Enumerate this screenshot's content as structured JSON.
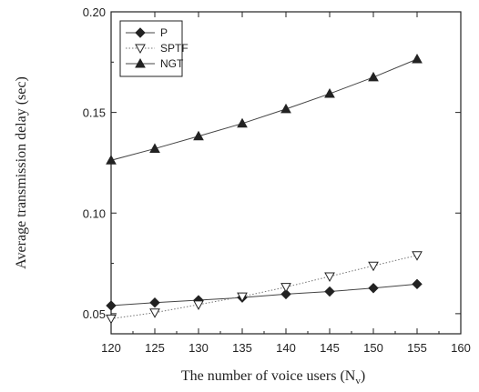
{
  "chart_data": {
    "type": "line",
    "xlabel": "The number of voice users (N",
    "xlabel_sub": "v",
    "xlabel_end": ")",
    "ylabel": "Average transmission delay (sec)",
    "xlim": [
      120,
      160
    ],
    "ylim": [
      0.04,
      0.2
    ],
    "x_ticks": [
      120,
      125,
      130,
      135,
      140,
      145,
      150,
      155,
      160
    ],
    "y_ticks": [
      0.05,
      0.1,
      0.15,
      0.2
    ],
    "y_tick_labels": [
      "0.05",
      "0.10",
      "0.15",
      "0.20"
    ],
    "grid": false,
    "legend_position": "top-left",
    "x": [
      120,
      125,
      130,
      135,
      140,
      145,
      150,
      155
    ],
    "series": [
      {
        "name": "P",
        "marker": "diamond",
        "line": "solid",
        "values": [
          0.054,
          0.0555,
          0.0567,
          0.058,
          0.0597,
          0.061,
          0.0627,
          0.0647
        ]
      },
      {
        "name": "SPTF",
        "marker": "triangle-down-open",
        "line": "dotted",
        "values": [
          0.0475,
          0.0505,
          0.0545,
          0.0585,
          0.0632,
          0.0685,
          0.0738,
          0.079
        ]
      },
      {
        "name": "NGT",
        "marker": "triangle-up",
        "line": "solid",
        "values": [
          0.1262,
          0.132,
          0.1382,
          0.1445,
          0.1517,
          0.1593,
          0.1675,
          0.1765
        ]
      }
    ]
  }
}
